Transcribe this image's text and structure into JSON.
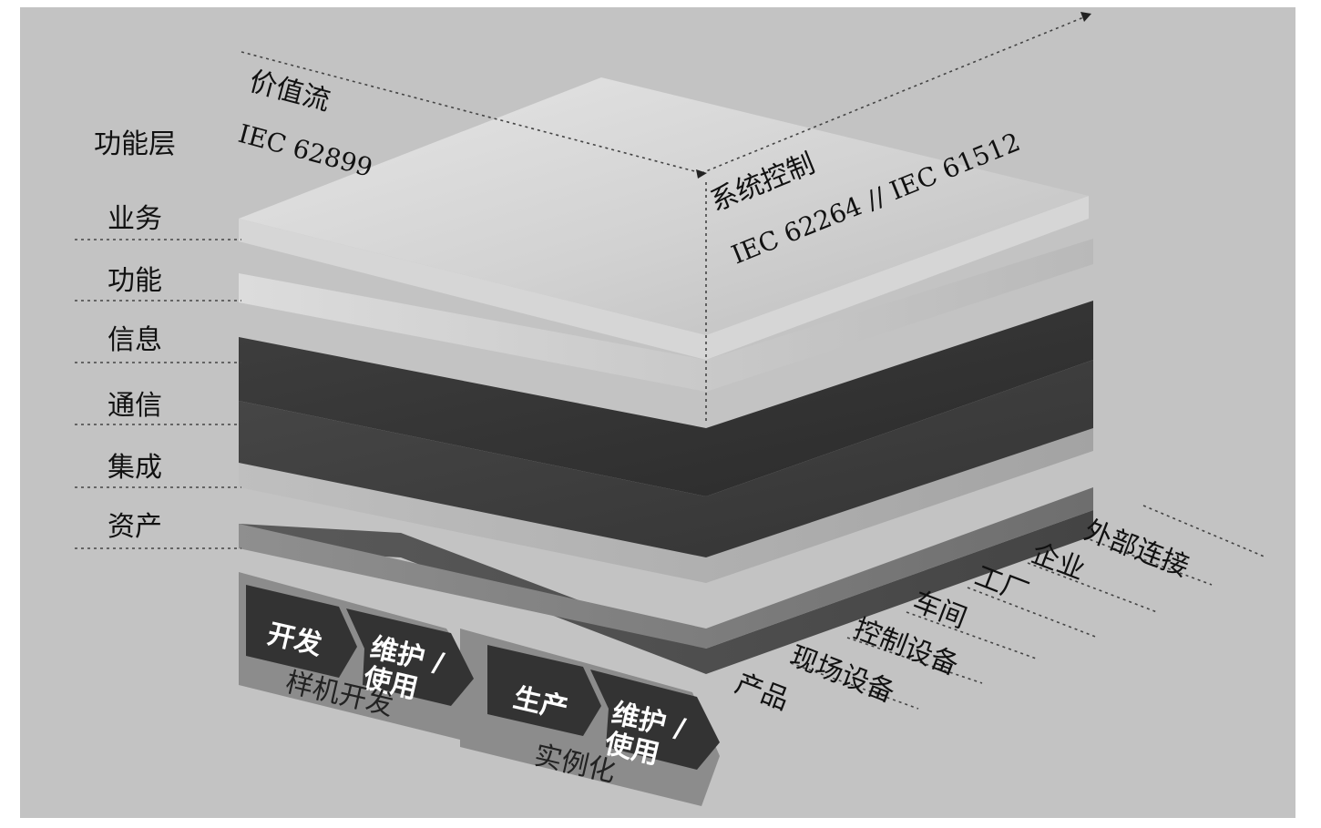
{
  "axis_labels": {
    "value_stream": "价值流",
    "value_stream_std": "IEC 62899",
    "functional_layers": "功能层",
    "system_control": "系统控制",
    "system_control_std": "IEC 62264 // IEC 61512"
  },
  "layers": [
    "业务",
    "功能",
    "信息",
    "通信",
    "集成",
    "资产"
  ],
  "hierarchy": [
    "外部连接",
    "企业",
    "工厂",
    "车间",
    "控制设备",
    "现场设备",
    "产品"
  ],
  "lifecycle": {
    "type_group_label": "样机开发",
    "type_steps": [
      "开发",
      "维护 /\n使用"
    ],
    "instance_group_label": "实例化",
    "instance_steps": [
      "生产",
      "维护 /\n使用"
    ]
  }
}
